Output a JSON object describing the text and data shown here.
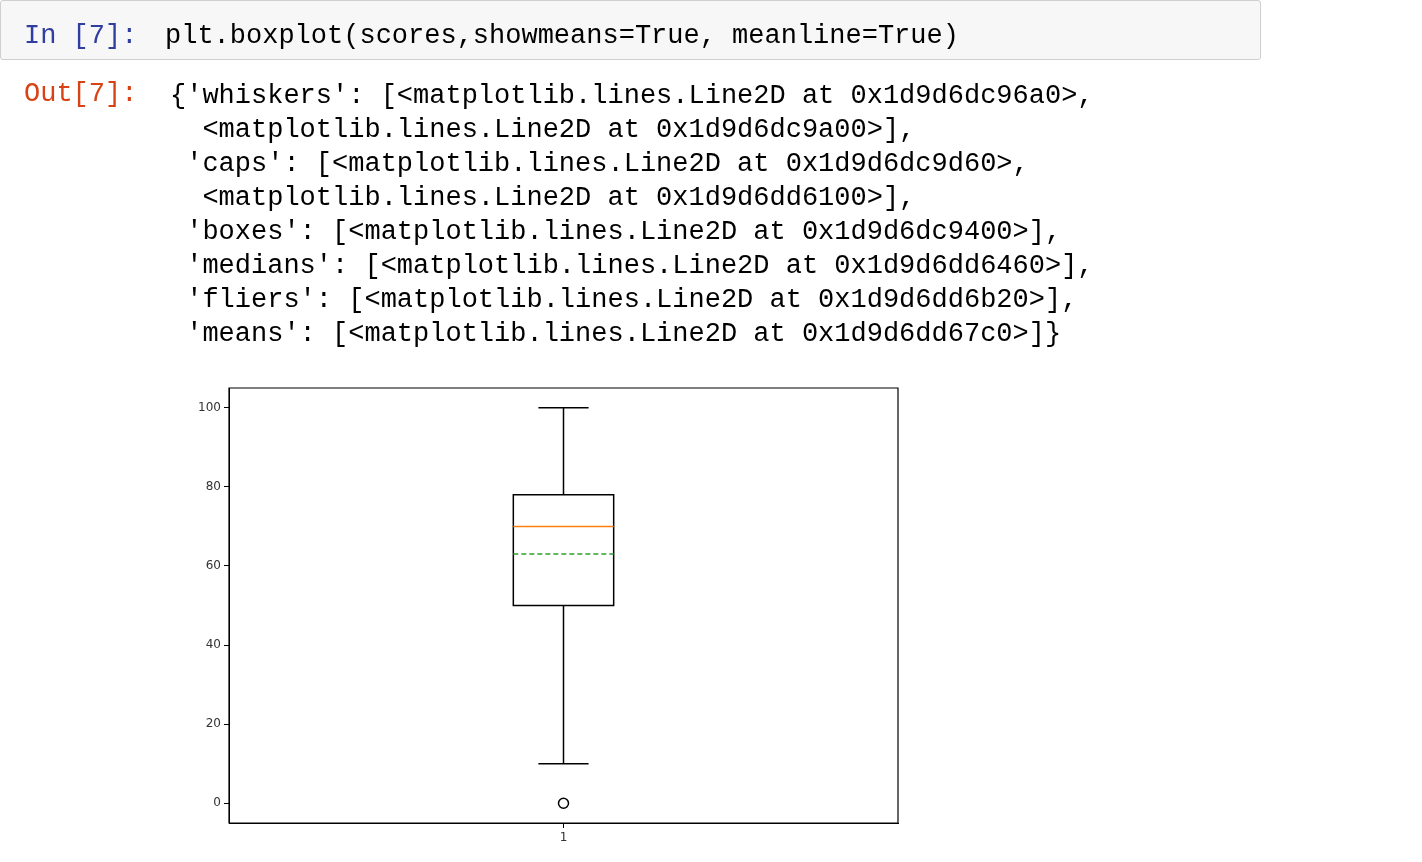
{
  "chart_data": {
    "type": "box",
    "categories": [
      "1"
    ],
    "boxes": [
      {
        "low": 10,
        "q1": 50,
        "median": 70,
        "q3": 78,
        "high": 100,
        "mean": 63,
        "outliers": [
          0
        ]
      }
    ],
    "ylim": [
      -5,
      105
    ],
    "yticks": [
      0,
      20,
      40,
      60,
      80,
      100
    ],
    "grid": false,
    "legend": false,
    "annotations": [
      "In [7]:",
      "plt.boxplot(scores,showmeans=True, meanline=True)",
      "Out[7]:",
      "{'whiskers': [<matplotlib.lines.Line2D at 0x1d9d6dc96a0>,",
      "  <matplotlib.lines.Line2D at 0x1d9d6dc9a00>],",
      " 'caps': [<matplotlib.lines.Line2D at 0x1d9d6dc9d60>,",
      "  <matplotlib.lines.Line2D at 0x1d9d6dd6100>],",
      " 'boxes': [<matplotlib.lines.Line2D at 0x1d9d6dc9400>],",
      " 'medians': [<matplotlib.lines.Line2D at 0x1d9d6dd6460>],",
      " 'fliers': [<matplotlib.lines.Line2D at 0x1d9d6dd6b20>],",
      " 'means': [<matplotlib.lines.Line2D at 0x1d9d6dd67c0>]}"
    ]
  }
}
